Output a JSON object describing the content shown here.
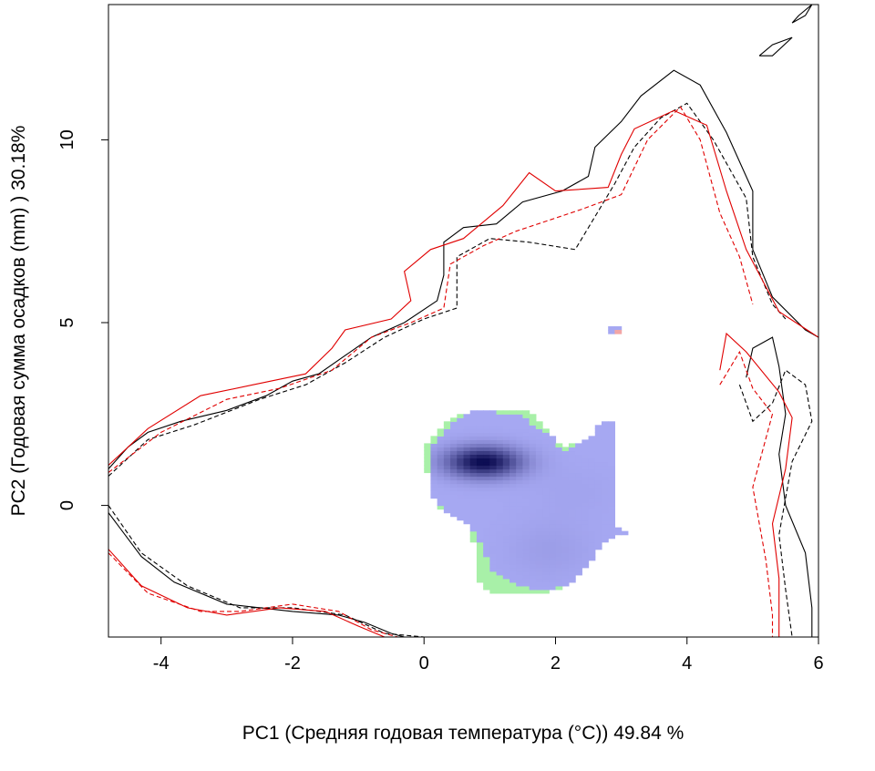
{
  "chart_data": {
    "type": "heatmap",
    "xlabel": "PC1 (Средняя годовая температура (°C)) 49.84 %",
    "ylabel": "PC2 (Годовая сумма осадков  (mm) ) 30.18%",
    "xlim": [
      -4.8,
      6.0
    ],
    "ylim": [
      -3.6,
      13.7
    ],
    "x_ticks": [
      -4,
      -2,
      0,
      2,
      4,
      6
    ],
    "y_ticks": [
      0,
      5,
      10
    ],
    "grid": false,
    "legend": "none",
    "colors": {
      "density_low": "#a6a8f2",
      "density_high": "#0a0a50",
      "green_region": "#a8f0a8",
      "red_line": "#e00000",
      "black_line": "#000000",
      "pink_cell": "#f2a6a6"
    },
    "density_cores": [
      {
        "x": 0.9,
        "y": 1.2,
        "weight": 1.0,
        "sx": 0.45,
        "sy": 0.33
      },
      {
        "x": 1.9,
        "y": -1.2,
        "weight": 0.12,
        "sx": 0.5,
        "sy": 0.6
      },
      {
        "x": 2.3,
        "y": 0.4,
        "weight": 0.06,
        "sx": 0.5,
        "sy": 0.5
      }
    ],
    "envelopes": [
      {
        "name": "",
        "color": "#000000",
        "dash": "solid",
        "upper": [
          [
            -4.8,
            1.0
          ],
          [
            -4.5,
            1.6
          ],
          [
            -4.2,
            2.0
          ],
          [
            -3.7,
            2.3
          ],
          [
            -3.0,
            2.6
          ],
          [
            -2.4,
            3.0
          ],
          [
            -2.0,
            3.4
          ],
          [
            -1.6,
            3.6
          ],
          [
            -1.2,
            4.1
          ],
          [
            -0.8,
            4.6
          ],
          [
            -0.3,
            5.0
          ],
          [
            0.2,
            5.6
          ],
          [
            0.3,
            6.3
          ],
          [
            0.3,
            7.2
          ],
          [
            0.6,
            7.6
          ],
          [
            1.1,
            7.7
          ],
          [
            1.5,
            8.3
          ],
          [
            2.1,
            8.6
          ],
          [
            2.5,
            9.0
          ],
          [
            2.6,
            9.8
          ],
          [
            3.0,
            10.5
          ],
          [
            3.3,
            11.2
          ],
          [
            3.8,
            11.9
          ],
          [
            4.2,
            11.5
          ],
          [
            4.6,
            10.2
          ],
          [
            5.0,
            8.6
          ],
          [
            5.0,
            7.0
          ],
          [
            5.3,
            5.7
          ],
          [
            5.8,
            4.8
          ],
          [
            6.0,
            4.6
          ]
        ],
        "lower": [
          [
            -4.8,
            -0.2
          ],
          [
            -4.3,
            -1.4
          ],
          [
            -3.8,
            -2.1
          ],
          [
            -3.0,
            -2.7
          ],
          [
            -2.0,
            -2.9
          ],
          [
            -1.3,
            -3.0
          ],
          [
            -0.9,
            -3.2
          ],
          [
            -0.5,
            -3.5
          ],
          [
            -0.3,
            -3.6
          ]
        ],
        "right": [
          [
            4.9,
            3.5
          ],
          [
            5.0,
            4.3
          ],
          [
            5.3,
            4.6
          ],
          [
            5.4,
            3.8
          ],
          [
            5.5,
            2.5
          ],
          [
            5.4,
            1.4
          ],
          [
            5.5,
            0.0
          ],
          [
            5.8,
            -1.3
          ],
          [
            5.9,
            -2.8
          ],
          [
            5.9,
            -3.6
          ]
        ]
      },
      {
        "name": "",
        "color": "#000000",
        "dash": "dashed",
        "upper": [
          [
            -4.8,
            0.8
          ],
          [
            -4.2,
            1.8
          ],
          [
            -3.5,
            2.2
          ],
          [
            -2.5,
            2.9
          ],
          [
            -1.8,
            3.3
          ],
          [
            -1.2,
            3.9
          ],
          [
            -0.6,
            4.6
          ],
          [
            0.0,
            5.1
          ],
          [
            0.5,
            5.4
          ],
          [
            0.5,
            6.8
          ],
          [
            1.0,
            7.3
          ],
          [
            1.6,
            7.2
          ],
          [
            2.3,
            7.0
          ],
          [
            2.6,
            7.9
          ],
          [
            2.9,
            8.8
          ],
          [
            3.2,
            9.8
          ],
          [
            3.6,
            10.6
          ],
          [
            4.0,
            11.0
          ],
          [
            4.4,
            10.0
          ],
          [
            4.9,
            8.4
          ],
          [
            5.0,
            6.8
          ],
          [
            5.3,
            5.5
          ],
          [
            5.5,
            5.1
          ]
        ],
        "lower": [
          [
            -4.8,
            0.0
          ],
          [
            -4.3,
            -1.3
          ],
          [
            -3.6,
            -2.2
          ],
          [
            -2.8,
            -2.8
          ],
          [
            -2.0,
            -2.8
          ],
          [
            -1.2,
            -3.0
          ],
          [
            -0.6,
            -3.5
          ],
          [
            0.0,
            -3.6
          ]
        ],
        "right": [
          [
            4.8,
            3.3
          ],
          [
            5.0,
            2.3
          ],
          [
            5.3,
            2.8
          ],
          [
            5.5,
            3.7
          ],
          [
            5.8,
            3.3
          ],
          [
            5.9,
            2.3
          ],
          [
            5.6,
            1.2
          ],
          [
            5.4,
            -0.8
          ],
          [
            5.5,
            -2.3
          ],
          [
            5.6,
            -3.6
          ]
        ]
      },
      {
        "name": "",
        "color": "#e00000",
        "dash": "solid",
        "upper": [
          [
            -4.8,
            1.1
          ],
          [
            -4.2,
            2.1
          ],
          [
            -3.4,
            3.0
          ],
          [
            -2.6,
            3.3
          ],
          [
            -1.8,
            3.6
          ],
          [
            -1.4,
            4.3
          ],
          [
            -1.2,
            4.8
          ],
          [
            -0.5,
            5.1
          ],
          [
            -0.2,
            5.6
          ],
          [
            -0.3,
            6.4
          ],
          [
            0.1,
            7.0
          ],
          [
            0.6,
            7.3
          ],
          [
            1.2,
            8.2
          ],
          [
            1.6,
            9.1
          ],
          [
            2.0,
            8.6
          ],
          [
            2.8,
            8.7
          ],
          [
            3.0,
            9.6
          ],
          [
            3.2,
            10.3
          ],
          [
            3.8,
            10.8
          ],
          [
            4.3,
            10.4
          ],
          [
            4.6,
            8.6
          ],
          [
            4.9,
            7.0
          ],
          [
            5.4,
            5.3
          ],
          [
            6.0,
            4.6
          ]
        ],
        "lower": [
          [
            -4.8,
            -1.2
          ],
          [
            -4.3,
            -2.2
          ],
          [
            -3.6,
            -2.8
          ],
          [
            -3.0,
            -3.0
          ],
          [
            -2.2,
            -2.8
          ],
          [
            -1.5,
            -2.9
          ],
          [
            -1.0,
            -3.3
          ],
          [
            -0.6,
            -3.6
          ]
        ],
        "right": [
          [
            4.5,
            3.7
          ],
          [
            4.6,
            4.7
          ],
          [
            4.9,
            4.2
          ],
          [
            5.4,
            3.1
          ],
          [
            5.6,
            2.4
          ],
          [
            5.5,
            1.0
          ],
          [
            5.3,
            -0.5
          ],
          [
            5.4,
            -2.0
          ],
          [
            5.4,
            -3.6
          ]
        ]
      },
      {
        "name": "",
        "color": "#e00000",
        "dash": "dashed",
        "upper": [
          [
            -4.8,
            0.9
          ],
          [
            -4.0,
            2.0
          ],
          [
            -3.0,
            2.9
          ],
          [
            -2.2,
            3.2
          ],
          [
            -1.4,
            3.7
          ],
          [
            -0.8,
            4.6
          ],
          [
            -0.2,
            5.0
          ],
          [
            0.3,
            5.4
          ],
          [
            0.4,
            6.6
          ],
          [
            0.9,
            7.1
          ],
          [
            1.4,
            7.5
          ],
          [
            1.9,
            7.8
          ],
          [
            2.4,
            8.1
          ],
          [
            3.0,
            8.5
          ],
          [
            3.4,
            10.0
          ],
          [
            3.9,
            10.9
          ],
          [
            4.2,
            10.0
          ],
          [
            4.5,
            8.0
          ],
          [
            4.8,
            6.8
          ],
          [
            5.0,
            5.5
          ]
        ],
        "lower": [
          [
            -4.8,
            -1.3
          ],
          [
            -4.2,
            -2.4
          ],
          [
            -3.4,
            -2.9
          ],
          [
            -2.8,
            -2.9
          ],
          [
            -2.0,
            -2.7
          ],
          [
            -1.3,
            -2.9
          ],
          [
            -0.8,
            -3.4
          ],
          [
            -0.4,
            -3.6
          ]
        ],
        "right": [
          [
            4.5,
            3.3
          ],
          [
            4.8,
            4.2
          ],
          [
            5.0,
            3.2
          ],
          [
            5.3,
            2.5
          ],
          [
            5.0,
            0.5
          ],
          [
            5.2,
            -1.5
          ],
          [
            5.3,
            -3.0
          ],
          [
            5.3,
            -3.6
          ]
        ]
      }
    ]
  }
}
